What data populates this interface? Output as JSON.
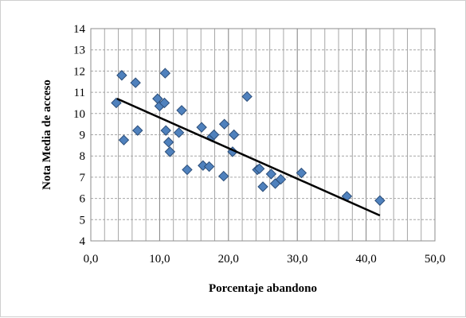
{
  "chart_data": {
    "type": "scatter",
    "title": "",
    "xlabel": "Porcentaje abandono",
    "ylabel": "Nota Media de acceso",
    "xlim": [
      0,
      50
    ],
    "ylim": [
      4,
      14
    ],
    "x_major_step": 10,
    "x_minor_step": 2,
    "y_step": 1,
    "x_tick_labels": [
      "0,0",
      "10,0",
      "20,0",
      "30,0",
      "40,0",
      "50,0"
    ],
    "y_tick_labels": [
      "4",
      "5",
      "6",
      "7",
      "8",
      "9",
      "10",
      "11",
      "12",
      "13",
      "14"
    ],
    "grid": true,
    "legend": "none",
    "marker": "diamond",
    "marker_color": "#4f81bd",
    "marker_edge_color": "#2b4d78",
    "trendline": {
      "x": [
        3.8,
        42.0
      ],
      "y": [
        10.7,
        5.2
      ],
      "color": "#000000"
    },
    "series": [
      {
        "points": [
          {
            "x": 3.7,
            "y": 10.5
          },
          {
            "x": 4.5,
            "y": 11.8
          },
          {
            "x": 4.8,
            "y": 8.75
          },
          {
            "x": 6.5,
            "y": 11.45
          },
          {
            "x": 6.8,
            "y": 9.2
          },
          {
            "x": 9.7,
            "y": 10.7
          },
          {
            "x": 10.0,
            "y": 10.35
          },
          {
            "x": 10.7,
            "y": 10.5
          },
          {
            "x": 10.8,
            "y": 11.9
          },
          {
            "x": 10.9,
            "y": 9.2
          },
          {
            "x": 11.3,
            "y": 8.65
          },
          {
            "x": 11.5,
            "y": 8.2
          },
          {
            "x": 12.8,
            "y": 9.1
          },
          {
            "x": 13.2,
            "y": 10.15
          },
          {
            "x": 14.0,
            "y": 7.35
          },
          {
            "x": 16.1,
            "y": 9.35
          },
          {
            "x": 16.3,
            "y": 7.55
          },
          {
            "x": 17.2,
            "y": 7.5
          },
          {
            "x": 17.6,
            "y": 8.9
          },
          {
            "x": 17.9,
            "y": 9.0
          },
          {
            "x": 19.3,
            "y": 7.05
          },
          {
            "x": 19.4,
            "y": 9.5
          },
          {
            "x": 20.6,
            "y": 8.2
          },
          {
            "x": 20.8,
            "y": 9.0
          },
          {
            "x": 22.7,
            "y": 10.8
          },
          {
            "x": 24.2,
            "y": 7.35
          },
          {
            "x": 24.5,
            "y": 7.4
          },
          {
            "x": 25.0,
            "y": 6.55
          },
          {
            "x": 26.2,
            "y": 7.15
          },
          {
            "x": 26.8,
            "y": 6.7
          },
          {
            "x": 27.6,
            "y": 6.9
          },
          {
            "x": 30.6,
            "y": 7.2
          },
          {
            "x": 37.2,
            "y": 6.1
          },
          {
            "x": 42.0,
            "y": 5.9
          }
        ]
      }
    ]
  }
}
